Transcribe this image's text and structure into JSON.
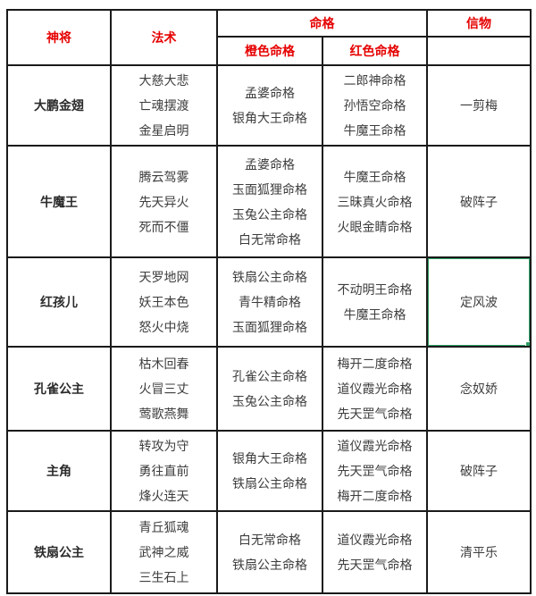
{
  "header": {
    "general": "神将",
    "skills": "法术",
    "fate": "命格",
    "fate_orange": "橙色命格",
    "fate_red": "红色命格",
    "token": "信物"
  },
  "rows": [
    {
      "general": "大鹏金翅",
      "skills": [
        "大慈大悲",
        "亡魂摆渡",
        "金星启明"
      ],
      "orange_fates": [
        "孟婆命格",
        "银角大王命格"
      ],
      "red_fates": [
        "二郎神命格",
        "孙悟空命格",
        "牛魔王命格"
      ],
      "token": "一剪梅",
      "token_selected": false
    },
    {
      "general": "牛魔王",
      "skills": [
        "腾云驾雾",
        "先天异火",
        "死而不僵"
      ],
      "orange_fates": [
        "孟婆命格",
        "玉面狐狸命格",
        "玉兔公主命格",
        "白无常命格"
      ],
      "red_fates": [
        "牛魔王命格",
        "三昧真火命格",
        "火眼金睛命格"
      ],
      "token": "破阵子",
      "token_selected": false
    },
    {
      "general": "红孩儿",
      "skills": [
        "天罗地网",
        "妖王本色",
        "怒火中烧"
      ],
      "orange_fates": [
        "铁扇公主命格",
        "青牛精命格",
        "玉面狐狸命格"
      ],
      "red_fates": [
        "不动明王命格",
        "牛魔王命格"
      ],
      "token": "定风波",
      "token_selected": true
    },
    {
      "general": "孔雀公主",
      "skills": [
        "枯木回春",
        "火冒三丈",
        "莺歌燕舞"
      ],
      "orange_fates": [
        "孔雀公主命格",
        "玉兔公主命格"
      ],
      "red_fates": [
        "梅开二度命格",
        "道仪霞光命格",
        "先天罡气命格"
      ],
      "token": "念奴娇",
      "token_selected": false
    },
    {
      "general": "主角",
      "skills": [
        "转攻为守",
        "勇往直前",
        "烽火连天"
      ],
      "orange_fates": [
        "银角大王命格",
        "铁扇公主命格"
      ],
      "red_fates": [
        "道仪霞光命格",
        "先天罡气命格",
        "梅开二度命格"
      ],
      "token": "破阵子",
      "token_selected": false
    },
    {
      "general": "铁扇公主",
      "skills": [
        "青丘狐魂",
        "武神之威",
        "三生石上"
      ],
      "orange_fates": [
        "白无常命格",
        "铁扇公主命格"
      ],
      "red_fates": [
        "道仪霞光命格",
        "先天罡气命格"
      ],
      "token": "清平乐",
      "token_selected": false
    }
  ],
  "colors": {
    "header_text": "#e60000",
    "body_text": "#3d3d3d",
    "border": "#1a1a1a",
    "selection": "#2e9e63"
  }
}
